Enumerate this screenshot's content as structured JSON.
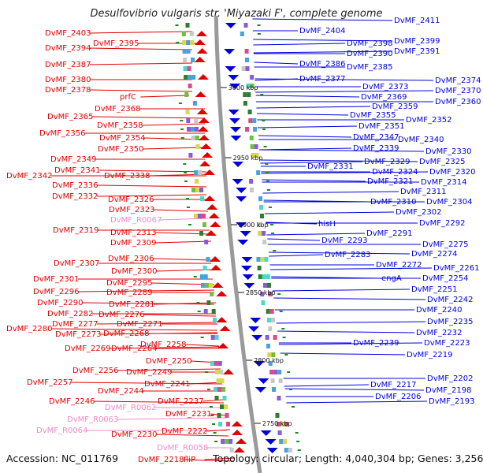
{
  "title": "Desulfovibrio vulgaris str. 'Miyazaki F', complete genome",
  "footer": {
    "accession": "Accession: NC_011769",
    "stats": "Topology: circular; Length: 4,040,304 bp; Genes: 3,256"
  },
  "colors": {
    "forward_strand": "#e00000",
    "reverse_strand": "#0000dd",
    "rna_gene": "#f08ac8",
    "backbone": "#9a9a9a",
    "tick_marker": "#1a8a1a"
  },
  "scale_ticks": [
    {
      "label": "3000 kbp"
    },
    {
      "label": "2950 kbp"
    },
    {
      "label": "2900 kbp"
    },
    {
      "label": "2850 kbp"
    },
    {
      "label": "2800 kbp"
    },
    {
      "label": "2750 kbp"
    }
  ],
  "left_labels": [
    {
      "name": "DvMF_2403",
      "type": "cds"
    },
    {
      "name": "DvMF_2395",
      "type": "cds"
    },
    {
      "name": "DvMF_2394",
      "type": "cds"
    },
    {
      "name": "DvMF_2387",
      "type": "cds"
    },
    {
      "name": "DvMF_2380",
      "type": "cds"
    },
    {
      "name": "DvMF_2378",
      "type": "cds"
    },
    {
      "name": "prfC",
      "type": "cds"
    },
    {
      "name": "DvMF_2368",
      "type": "cds"
    },
    {
      "name": "DvMF_2365",
      "type": "cds"
    },
    {
      "name": "DvMF_2358",
      "type": "cds"
    },
    {
      "name": "DvMF_2356",
      "type": "cds"
    },
    {
      "name": "DvMF_2354",
      "type": "cds"
    },
    {
      "name": "DvMF_2350",
      "type": "cds"
    },
    {
      "name": "DvMF_2349",
      "type": "cds"
    },
    {
      "name": "DvMF_2341",
      "type": "cds"
    },
    {
      "name": "DvMF_2338",
      "type": "cds"
    },
    {
      "name": "DvMF_2342",
      "type": "cds"
    },
    {
      "name": "DvMF_2336",
      "type": "cds"
    },
    {
      "name": "DvMF_2332",
      "type": "cds"
    },
    {
      "name": "DvMF_2326",
      "type": "cds"
    },
    {
      "name": "DvMF_2323",
      "type": "cds"
    },
    {
      "name": "DvMF_R0067",
      "type": "rna"
    },
    {
      "name": "DvMF_2319",
      "type": "cds"
    },
    {
      "name": "DvMF_2313",
      "type": "cds"
    },
    {
      "name": "DvMF_2309",
      "type": "cds"
    },
    {
      "name": "DvMF_2307",
      "type": "cds"
    },
    {
      "name": "DvMF_2306",
      "type": "cds"
    },
    {
      "name": "DvMF_2300",
      "type": "cds"
    },
    {
      "name": "DvMF_2301",
      "type": "cds"
    },
    {
      "name": "DvMF_2295",
      "type": "cds"
    },
    {
      "name": "DvMF_2296",
      "type": "cds"
    },
    {
      "name": "DvMF_2289",
      "type": "cds"
    },
    {
      "name": "DvMF_2290",
      "type": "cds"
    },
    {
      "name": "DvMF_2281",
      "type": "cds"
    },
    {
      "name": "DvMF_2282",
      "type": "cds"
    },
    {
      "name": "DvMF_2276",
      "type": "cds"
    },
    {
      "name": "DvMF_2277",
      "type": "cds"
    },
    {
      "name": "DvMF_2271",
      "type": "cds"
    },
    {
      "name": "DvMF_2280",
      "type": "cds"
    },
    {
      "name": "DvMF_2273",
      "type": "cds"
    },
    {
      "name": "DvMF_2268",
      "type": "cds"
    },
    {
      "name": "DvMF_2258",
      "type": "cds"
    },
    {
      "name": "DvMF_2269",
      "type": "cds"
    },
    {
      "name": "DvMF_2264",
      "type": "cds"
    },
    {
      "name": "DvMF_2250",
      "type": "cds"
    },
    {
      "name": "DvMF_2256",
      "type": "cds"
    },
    {
      "name": "DvMF_2249",
      "type": "cds"
    },
    {
      "name": "DvMF_2257",
      "type": "cds"
    },
    {
      "name": "DvMF_2241",
      "type": "cds"
    },
    {
      "name": "DvMF_2244",
      "type": "cds"
    },
    {
      "name": "DvMF_2246",
      "type": "cds"
    },
    {
      "name": "DvMF_2237",
      "type": "cds"
    },
    {
      "name": "DvMF_R0062",
      "type": "rna"
    },
    {
      "name": "DvMF_2231",
      "type": "cds"
    },
    {
      "name": "DvMF_R0063",
      "type": "rna"
    },
    {
      "name": "DvMF_R0064",
      "type": "rna"
    },
    {
      "name": "DvMF_2230",
      "type": "cds"
    },
    {
      "name": "DvMF_2222",
      "type": "cds"
    },
    {
      "name": "DvMF_R0058",
      "type": "rna"
    },
    {
      "name": "DvMF_2218",
      "type": "cds"
    },
    {
      "name": "fliP",
      "type": "cds"
    }
  ],
  "right_labels": [
    {
      "name": "DvMF_2411"
    },
    {
      "name": "DvMF_2404"
    },
    {
      "name": "DvMF_2398"
    },
    {
      "name": "DvMF_2399"
    },
    {
      "name": "DvMF_2390"
    },
    {
      "name": "DvMF_2391"
    },
    {
      "name": "DvMF_2386"
    },
    {
      "name": "DvMF_2385"
    },
    {
      "name": "DvMF_2377"
    },
    {
      "name": "DvMF_2374"
    },
    {
      "name": "DvMF_2373"
    },
    {
      "name": "DvMF_2370"
    },
    {
      "name": "DvMF_2369"
    },
    {
      "name": "DvMF_2360"
    },
    {
      "name": "DvMF_2359"
    },
    {
      "name": "DvMF_2355"
    },
    {
      "name": "DvMF_2352"
    },
    {
      "name": "DvMF_2351"
    },
    {
      "name": "DvMF_2347"
    },
    {
      "name": "DvMF_2340"
    },
    {
      "name": "DvMF_2339"
    },
    {
      "name": "DvMF_2330"
    },
    {
      "name": "DvMF_2331"
    },
    {
      "name": "DvMF_2329"
    },
    {
      "name": "DvMF_2325"
    },
    {
      "name": "DvMF_2324"
    },
    {
      "name": "DvMF_2320"
    },
    {
      "name": "DvMF_2321"
    },
    {
      "name": "DvMF_2314"
    },
    {
      "name": "DvMF_2311"
    },
    {
      "name": "DvMF_2310"
    },
    {
      "name": "DvMF_2304"
    },
    {
      "name": "DvMF_2302"
    },
    {
      "name": "hisH"
    },
    {
      "name": "DvMF_2292"
    },
    {
      "name": "DvMF_2291"
    },
    {
      "name": "DvMF_2293"
    },
    {
      "name": "DvMF_2275"
    },
    {
      "name": "DvMF_2283"
    },
    {
      "name": "DvMF_2274"
    },
    {
      "name": "DvMF_2272"
    },
    {
      "name": "DvMF_2261"
    },
    {
      "name": "engA"
    },
    {
      "name": "DvMF_2254"
    },
    {
      "name": "DvMF_2251"
    },
    {
      "name": "DvMF_2242"
    },
    {
      "name": "DvMF_2240"
    },
    {
      "name": "DvMF_2235"
    },
    {
      "name": "DvMF_2232"
    },
    {
      "name": "DvMF_2239"
    },
    {
      "name": "DvMF_2223"
    },
    {
      "name": "DvMF_2219"
    },
    {
      "name": "DvMF_2202"
    },
    {
      "name": "DvMF_2217"
    },
    {
      "name": "DvMF_2198"
    },
    {
      "name": "DvMF_2206"
    },
    {
      "name": "DvMF_2193"
    }
  ]
}
